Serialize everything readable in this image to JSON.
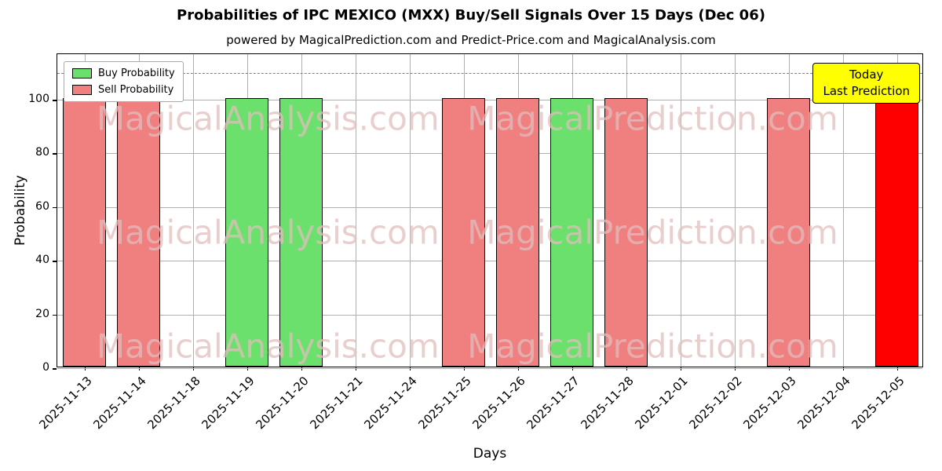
{
  "header": {
    "title": "Probabilities of IPC MEXICO (MXX) Buy/Sell Signals Over 15 Days (Dec 06)",
    "subtitle": "powered by MagicalPrediction.com and Predict-Price.com and MagicalAnalysis.com"
  },
  "legend": {
    "items": [
      {
        "label": "Buy Probability",
        "color": "#6ce06c"
      },
      {
        "label": "Sell Probability",
        "color": "#f08080"
      }
    ]
  },
  "annotation": {
    "lines": [
      "Today",
      "Last Prediction"
    ],
    "bg_color": "#ffff00"
  },
  "watermarks": {
    "left_text": "MagicalAnalysis.com",
    "right_text": "MagicalPrediction.com"
  },
  "colors": {
    "buy": "#6ce06c",
    "sell": "#f08080",
    "today": "#ff0000",
    "grid": "#b0b0b0",
    "threshold": "#7f7f7f"
  },
  "chart_data": {
    "type": "bar",
    "title": "Probabilities of IPC MEXICO (MXX) Buy/Sell Signals Over 15 Days (Dec 06)",
    "xlabel": "Days",
    "ylabel": "Probability",
    "ylim": [
      0,
      117
    ],
    "yticks": [
      0,
      20,
      40,
      60,
      80,
      100
    ],
    "threshold_line_y": 110,
    "grid": true,
    "legend_position": "upper-left",
    "categories": [
      "2025-11-13",
      "2025-11-14",
      "2025-11-18",
      "2025-11-19",
      "2025-11-20",
      "2025-11-21",
      "2025-11-24",
      "2025-11-25",
      "2025-11-26",
      "2025-11-27",
      "2025-11-28",
      "2025-12-01",
      "2025-12-02",
      "2025-12-03",
      "2025-12-04",
      "2025-12-05"
    ],
    "series": [
      {
        "name": "Buy Probability",
        "color": "#6ce06c",
        "values": [
          0,
          0,
          0,
          100,
          100,
          0,
          0,
          0,
          0,
          100,
          0,
          0,
          0,
          0,
          0,
          0
        ]
      },
      {
        "name": "Sell Probability",
        "color": "#f08080",
        "values": [
          100,
          100,
          0,
          0,
          0,
          0,
          0,
          100,
          100,
          0,
          100,
          0,
          0,
          100,
          0,
          0
        ]
      },
      {
        "name": "Last Prediction (Today)",
        "color": "#ff0000",
        "values": [
          0,
          0,
          0,
          0,
          0,
          0,
          0,
          0,
          0,
          0,
          0,
          0,
          0,
          0,
          0,
          100
        ]
      }
    ]
  }
}
